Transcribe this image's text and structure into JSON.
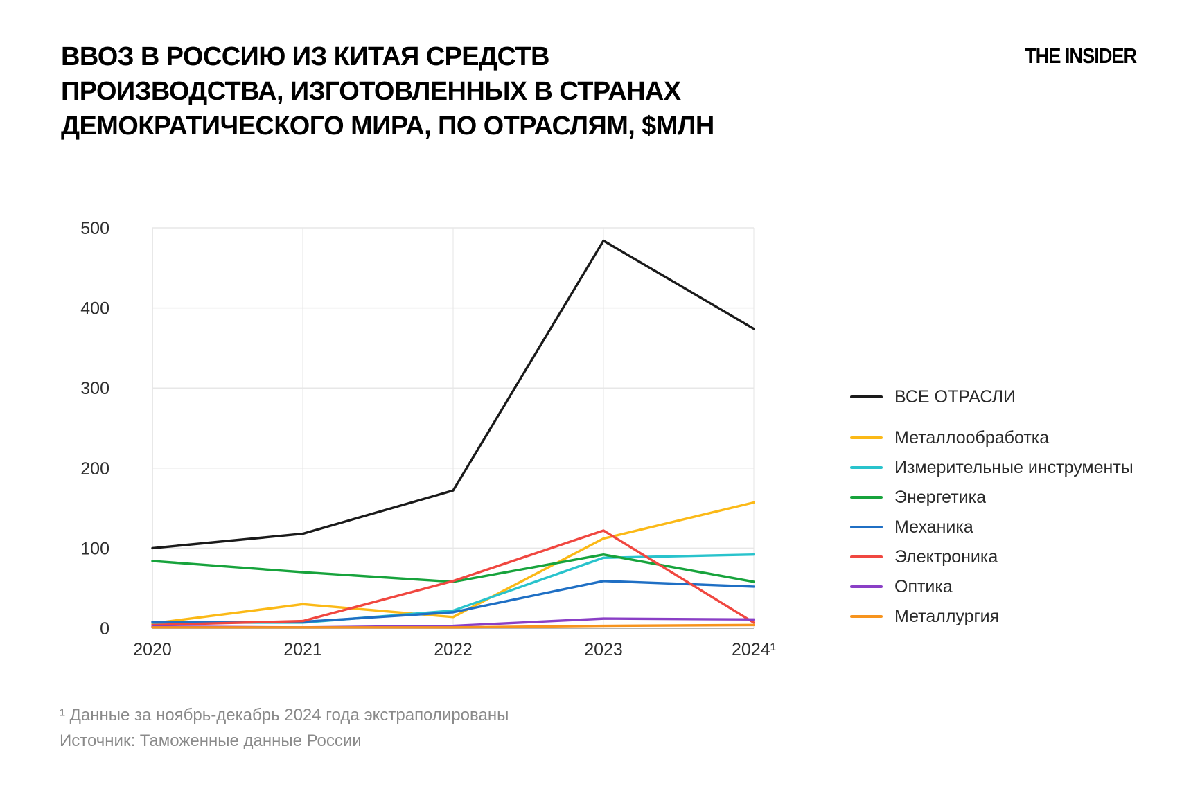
{
  "header": {
    "title_lines": [
      "ВВОЗ В РОССИЮ ИЗ КИТАЯ СРЕДСТВ",
      "ПРОИЗВОДСТВА, ИЗГОТОВЛЕННЫХ В СТРАНАХ",
      "ДЕМОКРАТИЧЕСКОГО МИРА, ПО ОТРАСЛЯМ, $МЛН"
    ]
  },
  "brand": {
    "logo": "THE INSIDER"
  },
  "chart_data": {
    "type": "line",
    "categories": [
      "2020",
      "2021",
      "2022",
      "2023",
      "2024¹"
    ],
    "title": "Ввоз в Россию из Китая средств производства, изготовленных в странах демократического мира, по отраслям, $млн",
    "xlabel": "",
    "ylabel": "$млн",
    "ylim": [
      0,
      500
    ],
    "yticks": [
      0,
      100,
      200,
      300,
      400,
      500
    ],
    "grid": true,
    "legend_position": "right",
    "series": [
      {
        "name": "ВСЕ ОТРАСЛИ",
        "color": "#1a1a1a",
        "values": [
          100,
          118,
          172,
          484,
          374
        ]
      },
      {
        "name": "Металлообработка",
        "color": "#fbb917",
        "values": [
          6,
          30,
          14,
          112,
          157
        ]
      },
      {
        "name": "Измерительные инструменты",
        "color": "#29c3cc",
        "values": [
          7,
          7,
          22,
          88,
          92
        ]
      },
      {
        "name": "Энергетика",
        "color": "#17a33c",
        "values": [
          84,
          70,
          58,
          92,
          58
        ]
      },
      {
        "name": "Механика",
        "color": "#1f6fc4",
        "values": [
          8,
          8,
          20,
          59,
          52
        ]
      },
      {
        "name": "Электроника",
        "color": "#f04740",
        "values": [
          4,
          9,
          59,
          122,
          7
        ]
      },
      {
        "name": "Оптика",
        "color": "#8a3fc6",
        "values": [
          2,
          1,
          3,
          12,
          11
        ]
      },
      {
        "name": "Металлургия",
        "color": "#f7941e",
        "values": [
          1,
          1,
          1,
          3,
          4
        ]
      }
    ]
  },
  "footnotes": {
    "line1": "¹ Данные за ноябрь-декабрь 2024 года экстраполированы",
    "line2": "Источник: Таможенные данные России"
  }
}
